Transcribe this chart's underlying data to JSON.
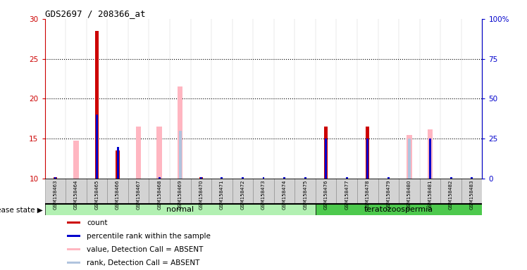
{
  "title": "GDS2697 / 208366_at",
  "samples": [
    "GSM158463",
    "GSM158464",
    "GSM158465",
    "GSM158466",
    "GSM158467",
    "GSM158468",
    "GSM158469",
    "GSM158470",
    "GSM158471",
    "GSM158472",
    "GSM158473",
    "GSM158474",
    "GSM158475",
    "GSM158476",
    "GSM158477",
    "GSM158478",
    "GSM158479",
    "GSM158480",
    "GSM158481",
    "GSM158482",
    "GSM158483"
  ],
  "count_val": [
    10.2,
    10.0,
    28.5,
    13.5,
    10.0,
    10.0,
    10.0,
    10.2,
    10.0,
    10.0,
    10.0,
    10.0,
    10.0,
    16.5,
    10.0,
    16.5,
    10.0,
    10.0,
    10.0,
    10.0,
    10.0
  ],
  "percentile_val": [
    10.2,
    10.0,
    18.0,
    14.0,
    10.0,
    10.2,
    10.2,
    10.2,
    10.2,
    10.2,
    10.2,
    10.2,
    10.2,
    15.0,
    10.2,
    15.0,
    10.2,
    10.2,
    15.0,
    10.2,
    10.2
  ],
  "absent_value_val": [
    10.0,
    14.8,
    10.0,
    10.0,
    16.5,
    16.5,
    21.5,
    10.0,
    10.0,
    10.0,
    10.0,
    10.0,
    10.0,
    10.0,
    10.0,
    10.0,
    10.0,
    15.5,
    16.2,
    10.0,
    10.0
  ],
  "absent_rank_val": [
    10.0,
    10.0,
    10.0,
    10.0,
    10.0,
    10.0,
    16.0,
    10.0,
    10.0,
    10.0,
    10.0,
    10.0,
    10.0,
    10.0,
    10.0,
    10.0,
    10.0,
    15.0,
    10.0,
    10.0,
    10.0
  ],
  "show_count": [
    true,
    false,
    true,
    true,
    false,
    false,
    false,
    true,
    false,
    false,
    false,
    false,
    false,
    true,
    false,
    true,
    false,
    false,
    false,
    false,
    false
  ],
  "show_percentile": [
    true,
    false,
    true,
    true,
    false,
    true,
    false,
    true,
    true,
    true,
    true,
    true,
    true,
    true,
    true,
    true,
    true,
    false,
    true,
    true,
    true
  ],
  "show_abs_value": [
    false,
    true,
    false,
    false,
    true,
    true,
    true,
    false,
    false,
    false,
    false,
    false,
    false,
    false,
    false,
    false,
    false,
    true,
    true,
    false,
    false
  ],
  "show_abs_rank": [
    false,
    false,
    false,
    false,
    false,
    false,
    true,
    false,
    false,
    false,
    false,
    false,
    false,
    false,
    false,
    false,
    false,
    true,
    false,
    false,
    false
  ],
  "ylim_left": [
    10,
    30
  ],
  "ylim_right": [
    0,
    100
  ],
  "yticks_left": [
    10,
    15,
    20,
    25,
    30
  ],
  "yticks_right": [
    0,
    25,
    50,
    75,
    100
  ],
  "ytick_labels_left": [
    "10",
    "15",
    "20",
    "25",
    "30"
  ],
  "ytick_labels_right": [
    "0",
    "25",
    "50",
    "75",
    "100%"
  ],
  "groups": [
    {
      "label": "normal",
      "start": 0,
      "end": 12,
      "color": "#b2f0b2"
    },
    {
      "label": "teratozoospermia",
      "start": 13,
      "end": 20,
      "color": "#4dc94d"
    }
  ],
  "disease_state_label": "disease state",
  "red_color": "#cc0000",
  "blue_color": "#0000cc",
  "pink_color": "#ffb6c1",
  "lightblue_color": "#b0c4de",
  "bg_color": "#d3d3d3",
  "plot_bg": "#ffffff",
  "legend_items": [
    {
      "label": "count",
      "color": "#cc0000"
    },
    {
      "label": "percentile rank within the sample",
      "color": "#0000cc"
    },
    {
      "label": "value, Detection Call = ABSENT",
      "color": "#ffb6c1"
    },
    {
      "label": "rank, Detection Call = ABSENT",
      "color": "#b0c4de"
    }
  ]
}
